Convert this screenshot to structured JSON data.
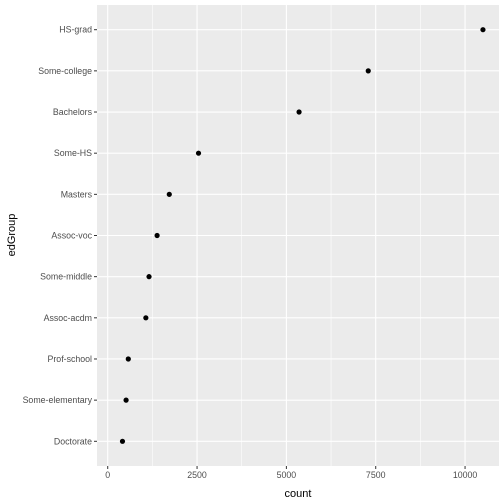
{
  "chart_data": {
    "type": "scatter",
    "title": "",
    "xlabel": "count",
    "ylabel": "edGroup",
    "xlim": [
      -300,
      10950
    ],
    "x_ticks": [
      0,
      2500,
      5000,
      7500,
      10000
    ],
    "x_minor_ticks": [
      1250,
      3750,
      6250,
      8750
    ],
    "grid": true,
    "legend": "none",
    "categories": [
      "Doctorate",
      "Some-elementary",
      "Prof-school",
      "Assoc-acdm",
      "Some-middle",
      "Assoc-voc",
      "Masters",
      "Some-HS",
      "Bachelors",
      "Some-college",
      "HS-grad"
    ],
    "series": [
      {
        "values": [
          413,
          514,
          576,
          1067,
          1156,
          1382,
          1723,
          2541,
          5355,
          7291,
          10501
        ]
      }
    ]
  },
  "colors": {
    "panel_background": "#EBEBEB",
    "grid_line": "#FFFFFF",
    "point": "#000000"
  }
}
